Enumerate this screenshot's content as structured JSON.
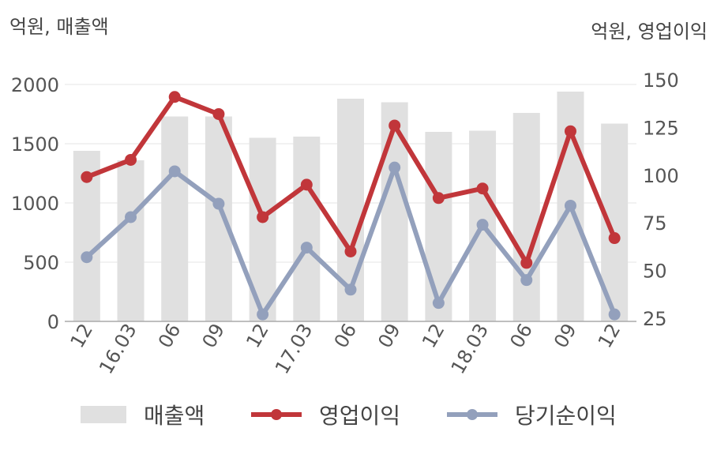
{
  "units": {
    "left": "억원, 매출액",
    "right": "억원, 영업이익"
  },
  "colors": {
    "revenue": "#e0e0e0",
    "operating_income": "#c1363a",
    "net_income": "#93a0bc",
    "grid": "#e6e6e6",
    "axis_text": "#555555"
  },
  "chart_data": {
    "type": "bar",
    "categories": [
      "12",
      "16.03",
      "06",
      "09",
      "12",
      "17.03",
      "06",
      "09",
      "12",
      "18.03",
      "06",
      "09",
      "12"
    ],
    "series": [
      {
        "name": "매출액",
        "type": "bar",
        "axis": "left",
        "values": [
          1440,
          1360,
          1730,
          1730,
          1550,
          1560,
          1880,
          1850,
          1600,
          1610,
          1760,
          1940,
          1670
        ]
      },
      {
        "name": "영업이익",
        "type": "line",
        "axis": "right",
        "values": [
          99,
          108,
          141,
          132,
          78,
          95,
          60,
          126,
          88,
          93,
          54,
          123,
          67
        ]
      },
      {
        "name": "당기순이익",
        "type": "line",
        "axis": "right",
        "values": [
          57,
          78,
          102,
          85,
          27,
          62,
          40,
          104,
          33,
          74,
          45,
          84,
          27
        ]
      }
    ],
    "y_left": {
      "min": 0,
      "max": 2000,
      "ticks": [
        0,
        500,
        1000,
        1500,
        2000
      ]
    },
    "y_right": {
      "min": 25,
      "max": 150,
      "ticks": [
        25,
        50,
        75,
        100,
        125,
        150
      ]
    },
    "grid": true,
    "legend": "bottom"
  }
}
